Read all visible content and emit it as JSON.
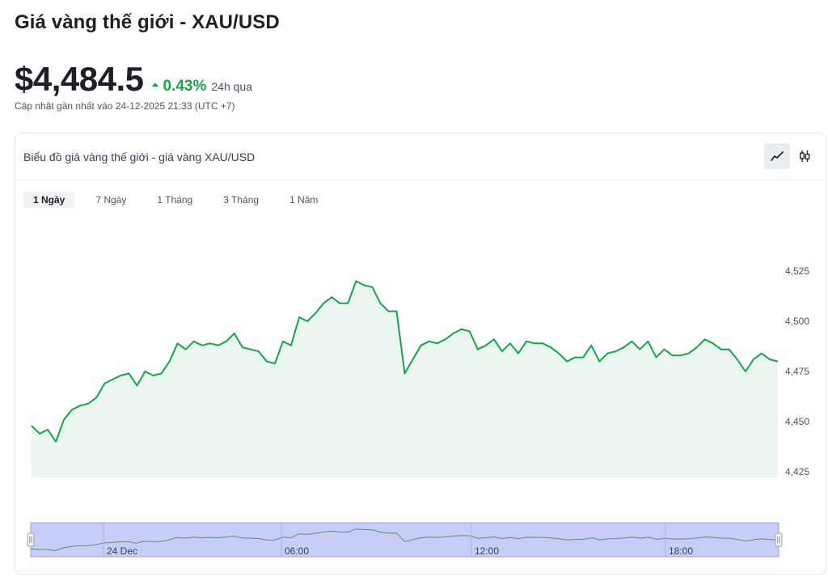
{
  "page": {
    "title": "Giá vàng thế giới - XAU/USD",
    "price": "$4,484.5",
    "change_pct": "0.43%",
    "change_period": "24h qua",
    "updated": "Cập nhật gần nhất vào 24-12-2025 21:33 (UTC +7)"
  },
  "card": {
    "title": "Biểu đồ giá vàng thế giới - giá vàng XAU/USD",
    "view_buttons": [
      "line-chart-icon",
      "candlestick-icon"
    ],
    "active_view": "line-chart-icon"
  },
  "tabs": [
    {
      "label": "1 Ngày",
      "active": true
    },
    {
      "label": "7 Ngày",
      "active": false
    },
    {
      "label": "1 Tháng",
      "active": false
    },
    {
      "label": "3 Tháng",
      "active": false
    },
    {
      "label": "1 Năm",
      "active": false
    }
  ],
  "colors": {
    "line": "#16a34a",
    "area": "#eaf6ef",
    "up": "#16a34a",
    "navigator_fill": "#c7cdf6"
  },
  "chart_data": {
    "type": "area",
    "title": "",
    "xlabel": "",
    "ylabel": "",
    "ylim": [
      4420,
      4530
    ],
    "yticks": [
      "4,525",
      "4,500",
      "4,475",
      "4,450",
      "4,425"
    ],
    "ytick_values": [
      4525,
      4500,
      4475,
      4450,
      4425
    ],
    "navigator_labels": [
      "24 Dec",
      "06:00",
      "12:00",
      "18:00"
    ],
    "series": [
      {
        "values": [
          4448,
          4444,
          4446,
          4440,
          4451,
          4456,
          4458,
          4459,
          4462,
          4469,
          4471,
          4473,
          4474,
          4468,
          4475,
          4473,
          4474,
          4480,
          4489,
          4486,
          4490,
          4488,
          4489,
          4488,
          4490,
          4494,
          4487,
          4486,
          4485,
          4480,
          4479,
          4490,
          4488,
          4502,
          4500,
          4504,
          4509,
          4512,
          4509,
          4509,
          4520,
          4518,
          4517,
          4509,
          4505,
          4505,
          4474,
          4481,
          4488,
          4490,
          4489,
          4491,
          4494,
          4496,
          4495,
          4486,
          4488,
          4491,
          4485,
          4489,
          4484,
          4490,
          4489,
          4489,
          4487,
          4484,
          4480,
          4482,
          4482,
          4488,
          4480,
          4484,
          4485,
          4487,
          4490,
          4486,
          4490,
          4482,
          4486,
          4483,
          4483,
          4484,
          4487,
          4491,
          4489,
          4486,
          4486,
          4481,
          4475,
          4481,
          4484,
          4481,
          4480
        ]
      }
    ]
  }
}
